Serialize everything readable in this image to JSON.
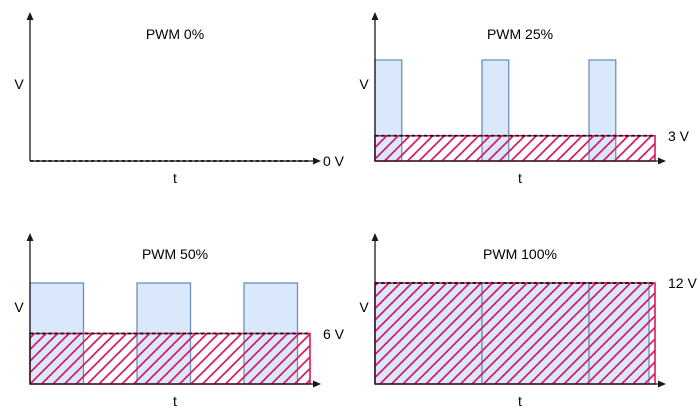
{
  "figure": {
    "description": "Four PWM duty-cycle waveform plots showing average voltage",
    "background": "#ffffff"
  },
  "colors": {
    "pulse_fill": "#dae8fc",
    "pulse_border": "#6c8ebf",
    "hatch_stroke": "#d81b60",
    "axis": "#1a1a1a",
    "avg_dash": "#111111",
    "text": "#000000"
  },
  "chart_data": [
    {
      "type": "area",
      "title": "PWM 0%",
      "xlabel": "t",
      "ylabel": "V",
      "duty_cycle_percent": 0,
      "supply_voltage_v": 12,
      "average_voltage_v": 0,
      "average_voltage_label": "0 V",
      "periods_shown": 3,
      "pulses_period_units": [],
      "y_range_v": [
        0,
        12
      ],
      "grid": false,
      "legend": false
    },
    {
      "type": "area",
      "title": "PWM 25%",
      "xlabel": "t",
      "ylabel": "V",
      "duty_cycle_percent": 25,
      "supply_voltage_v": 12,
      "average_voltage_v": 3,
      "average_voltage_label": "3 V",
      "periods_shown": 3,
      "pulses_period_units": [
        [
          0,
          0.25
        ],
        [
          1,
          1.25
        ],
        [
          2,
          2.25
        ]
      ],
      "y_range_v": [
        0,
        12
      ],
      "grid": false,
      "legend": false
    },
    {
      "type": "area",
      "title": "PWM 50%",
      "xlabel": "t",
      "ylabel": "V",
      "duty_cycle_percent": 50,
      "supply_voltage_v": 12,
      "average_voltage_v": 6,
      "average_voltage_label": "6 V",
      "periods_shown": 3,
      "pulses_period_units": [
        [
          0,
          0.5
        ],
        [
          1,
          1.5
        ],
        [
          2,
          2.5
        ]
      ],
      "y_range_v": [
        0,
        12
      ],
      "grid": false,
      "legend": false
    },
    {
      "type": "area",
      "title": "PWM 100%",
      "xlabel": "t",
      "ylabel": "V",
      "duty_cycle_percent": 100,
      "supply_voltage_v": 12,
      "average_voltage_v": 12,
      "average_voltage_label": "12 V",
      "periods_shown": 3,
      "pulses_period_units": [
        [
          0,
          1
        ],
        [
          1,
          2
        ],
        [
          2,
          3
        ]
      ],
      "y_range_v": [
        0,
        12
      ],
      "grid": false,
      "legend": false
    }
  ]
}
